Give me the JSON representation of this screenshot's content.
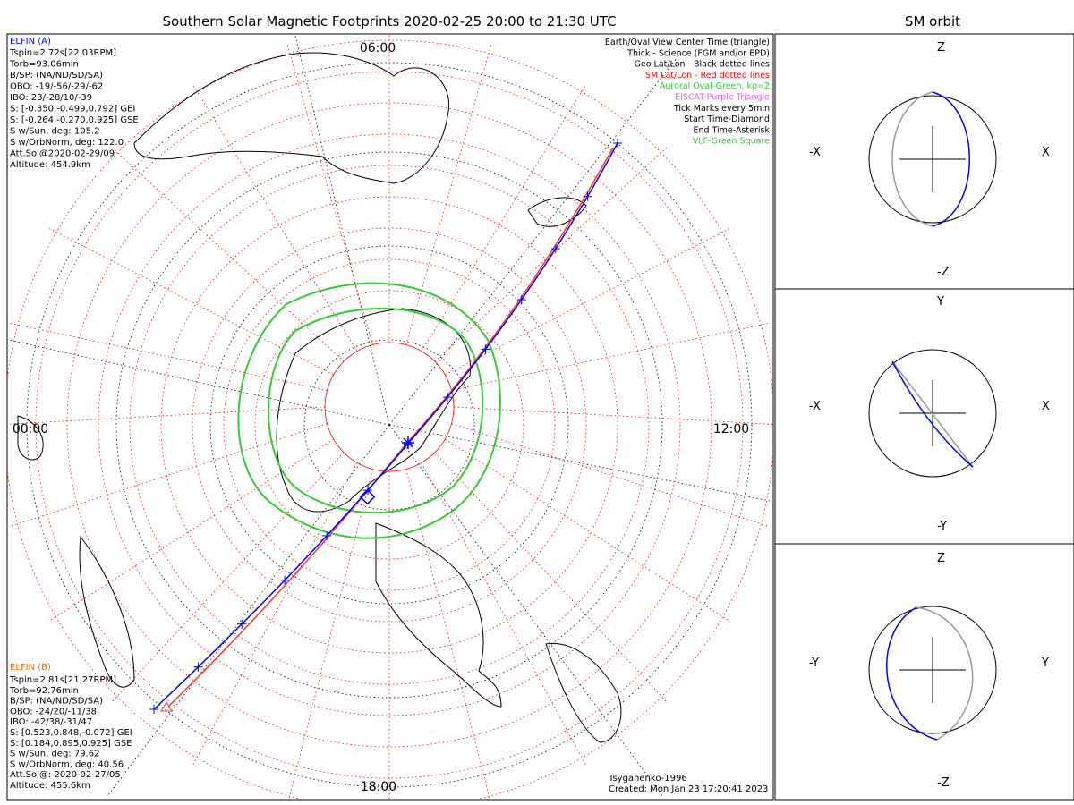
{
  "main_title": "Southern Solar Magnetic Footprints 2020-02-25 20:00 to 21:30 UTC",
  "side_title": "SM orbit",
  "map": {
    "clock_labels": {
      "top": "06:00",
      "left": "00:00",
      "right": "12:00",
      "bottom": "18:00"
    },
    "legend": [
      {
        "text": "Earth/Oval View Center Time (triangle)",
        "color": "#000000"
      },
      {
        "text": "Thick - Science (FGM and/or EPD)",
        "color": "#000000"
      },
      {
        "text": "Geo Lat/Lon - Black dotted lines",
        "color": "#000000"
      },
      {
        "text": "SM Lat/Lon - Red dotted lines",
        "color": "#ff0000"
      },
      {
        "text": "Auroral Oval-Green, kp=2",
        "color": "#33cc33"
      },
      {
        "text": "EISCAT-Purple Triangle",
        "color": "#dd66dd"
      },
      {
        "text": "Tick Marks every 5min",
        "color": "#000000"
      },
      {
        "text": "Start Time-Diamond",
        "color": "#000000"
      },
      {
        "text": "End Time-Asterisk",
        "color": "#000000"
      },
      {
        "text": "VLF-Green Square",
        "color": "#33cc33"
      }
    ],
    "elfin_a": {
      "title": "ELFIN (A)",
      "color": "#0000ff",
      "lines": [
        "Tspin=2.72s[22.03RPM]",
        "Torb=93.06min",
        "B/SP: (NA/ND/SD/SA)",
        "OBO: -19/-56/-29/-62",
        "IBO: 23/-28/10/-39",
        "S: [-0.350,-0.499,0.792] GEI",
        "S: [-0.264,-0.270,0.925] GSE",
        "S w/Sun, deg: 105.2",
        "S w/OrbNorm, deg: 122.0",
        "Att.Sol@2020-02-29/09",
        "Altitude: 454.9km"
      ]
    },
    "elfin_b": {
      "title": "ELFIN (B)",
      "color": "#ff6600",
      "lines": [
        "Tspin=2.81s[21.27RPM]",
        "Torb=92.76min",
        "B/SP: (NA/ND/SD/SA)",
        "OBO: -24/20/-11/38",
        "IBO: -42/38/-31/47",
        "S: [0.523,0.848,-0.072] GEI",
        "S: [0.184,0.895,0.925] GSE",
        "S w/Sun, deg: 79.62",
        "S w/OrbNorm, deg: 40.56",
        "Att.Sol@: 2020-02-27/05",
        "Altitude: 455.6km"
      ]
    },
    "credits": [
      "Tsyganenko-1996",
      "Created: Mon Jan 23 17:20:41 2023"
    ]
  },
  "orbit_panels": [
    {
      "top": "Z",
      "bottom": "-Z",
      "left": "-X",
      "right": "X"
    },
    {
      "top": "Y",
      "bottom": "-Y",
      "left": "-X",
      "right": "X"
    },
    {
      "top": "Z",
      "bottom": "-Z",
      "left": "-Y",
      "right": "Y"
    }
  ],
  "colors": {
    "sc_a": "#0000ff",
    "sc_b": "#ff3333",
    "oval": "#33cc33",
    "sm_grid": "#ff0000",
    "orbit_gray": "#999999"
  }
}
